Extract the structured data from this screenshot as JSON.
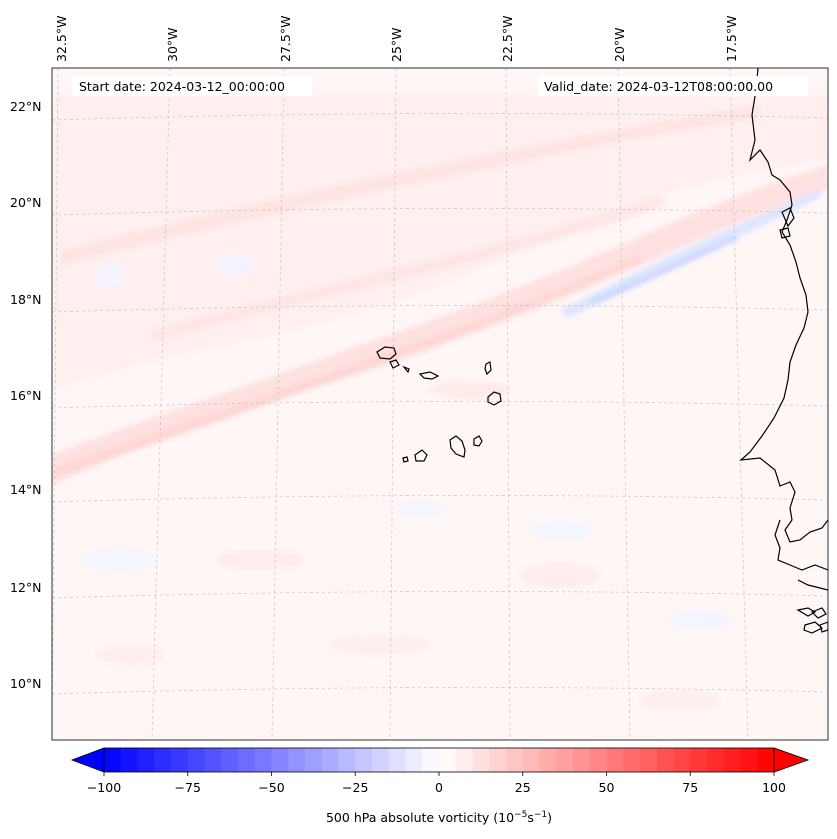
{
  "map": {
    "start_label": "Start date: 2024-03-12_00:00:00",
    "valid_label": "Valid_date: 2024-03-12T08:00:00.00",
    "lon_labels": [
      "32.5°W",
      "30°W",
      "27.5°W",
      "25°W",
      "22.5°W",
      "20°W",
      "17.5°W"
    ],
    "lat_labels": [
      "22°N",
      "20°N",
      "18°N",
      "16°N",
      "14°N",
      "12°N",
      "10°N"
    ]
  },
  "colorbar": {
    "label_main": "500 hPa absolute vorticity (10",
    "label_exp1": "−5",
    "label_mid": "s",
    "label_exp2": "−1",
    "label_end": ")",
    "min": -100,
    "max": 100,
    "step": 5,
    "tick_labels": [
      "−100",
      "−75",
      "−50",
      "−25",
      "0",
      "25",
      "50",
      "75",
      "100"
    ],
    "low_color": "#0000ff",
    "high_color": "#ff0000"
  },
  "colors": {
    "background_field": "#fff6f6",
    "positive_band": "#ffe1e1",
    "weak_positive": "#ffeded",
    "negative_band": "#e6ecff",
    "coastline": "#000000"
  }
}
